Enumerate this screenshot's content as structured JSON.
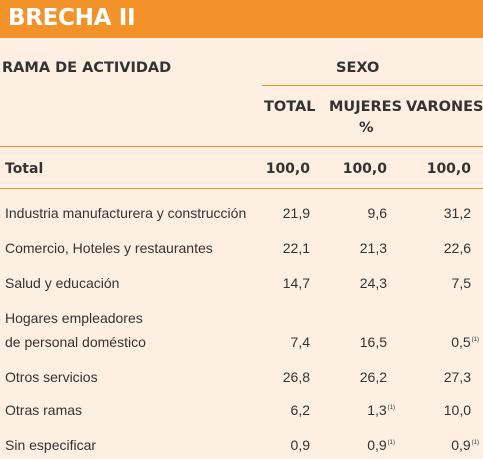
{
  "banner": {
    "title": "BRECHA II"
  },
  "header": {
    "rama": "RAMA DE ACTIVIDAD",
    "sexo": "SEXO",
    "total": "TOTAL",
    "mujeres": "MUJERES",
    "varones": "VARONES",
    "unit": "%"
  },
  "rows": [
    {
      "label": "Total",
      "total": "100,0",
      "mujeres": "100,0",
      "varones": "100,0"
    },
    {
      "label": "Industria manufacturera y construcción",
      "total": "21,9",
      "mujeres": "9,6",
      "varones": "31,2"
    },
    {
      "label": "Comercio, Hoteles y restaurantes",
      "total": "22,1",
      "mujeres": "21,3",
      "varones": "22,6"
    },
    {
      "label": "Salud y educación",
      "total": "14,7",
      "mujeres": "24,3",
      "varones": "7,5"
    },
    {
      "label_line1": "Hogares empleadores",
      "label_line2": "de personal doméstico",
      "total": "7,4",
      "mujeres": "16,5",
      "varones": "0,5",
      "varones_note": "(1)"
    },
    {
      "label": "Otros servicios",
      "total": "26,8",
      "mujeres": "26,2",
      "varones": "27,3"
    },
    {
      "label": "Otras ramas",
      "total": "6,2",
      "mujeres": "1,3",
      "mujeres_note": "(1)",
      "varones": "10,0"
    },
    {
      "label": "Sin especificar",
      "total": "0,9",
      "mujeres": "0,9",
      "mujeres_note": "(1)",
      "varones": "0,9",
      "varones_note": "(1)"
    }
  ]
}
